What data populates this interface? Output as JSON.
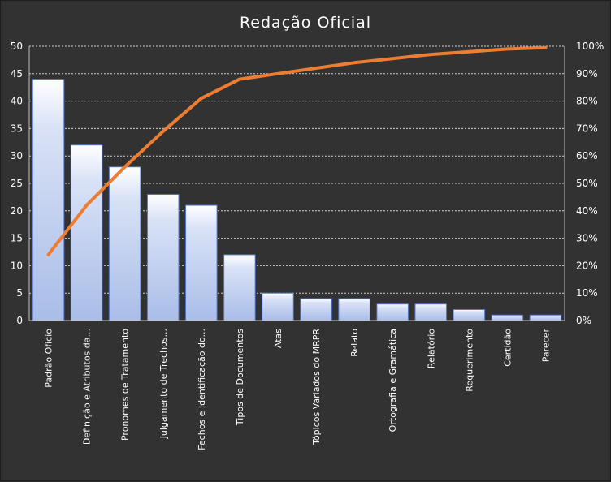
{
  "chart_data": {
    "type": "bar",
    "title": "Redação Oficial",
    "categories": [
      "Padrão Ofício",
      "Definição e Atributos da...",
      "Pronomes de Tratamento",
      "Julgamento de Trechos...",
      "Fechos e Identificação do...",
      "Tipos de Documentos",
      "Atas",
      "Tópicos Variados do MRPR",
      "Relato",
      "Ortografia e Gramática",
      "Relatório",
      "Requerimento",
      "Certidão",
      "Parecer"
    ],
    "series": [
      {
        "values": [
          44,
          32,
          28,
          23,
          21,
          12,
          5,
          4,
          4,
          3,
          3,
          2,
          1,
          1
        ]
      },
      {
        "values": [
          24,
          42,
          56,
          69,
          81,
          88,
          90,
          92,
          94,
          95.5,
          97,
          98,
          99,
          99.5
        ],
        "axis": "right"
      }
    ],
    "ylim": [
      0,
      50
    ],
    "yticks": [
      "0",
      "5",
      "10",
      "15",
      "20",
      "25",
      "30",
      "35",
      "40",
      "45",
      "50"
    ],
    "y2lim": [
      0,
      100
    ],
    "y2ticks": [
      "0%",
      "10%",
      "20%",
      "30%",
      "40%",
      "50%",
      "60%",
      "70%",
      "80%",
      "90%",
      "100%"
    ],
    "grid": true,
    "legend": "none",
    "colors": {
      "background": "#323232",
      "bar_fill_top": "#ffffff",
      "bar_fill_bottom": "#a9bde8",
      "bar_stroke": "#4f74c9",
      "line": "#ed7d31",
      "grid": "#d0d0d0",
      "text": "#ffffff"
    }
  }
}
